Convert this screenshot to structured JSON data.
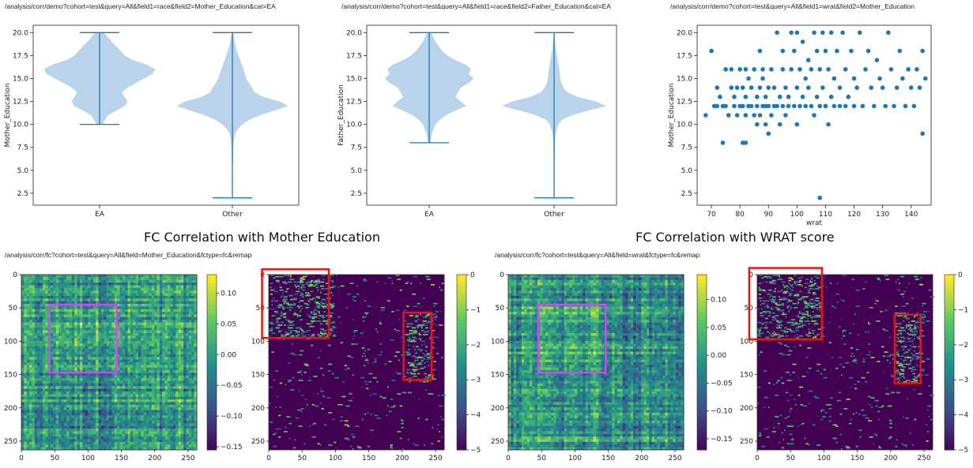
{
  "urls": {
    "violin_mother": "/analysis/corr/demo?cohort=test&query=All&field1=race&field2=Mother_Education&cat=EA",
    "violin_father": "/analysis/corr/demo?cohort=test&query=All&field1=race&field2=Father_Education&cat=EA",
    "scatter_wrat": "/analysis/corr/demo?cohort=test&query=All&field1=wrat&field2=Mother_Education",
    "fc_mother": "/analysis/corr/fc?cohort=test&query=All&field=Mother_Education&fctype=fc&remap",
    "fc_wrat": "/analysis/corr/fc?cohort=test&query=All&field=wrat&fctype=fc&remap"
  },
  "titles": {
    "fc_mother": "FC Correlation with Mother Education",
    "fc_wrat": "FC Correlation with WRAT score"
  },
  "colors": {
    "violin_fill": "#b9d4ea",
    "violin_line": "#1f77b4",
    "scatter_point": "#1f77b4",
    "highlight_magenta": "#e040fb",
    "highlight_red": "#ee1111"
  },
  "chart_data": [
    {
      "type": "violin",
      "categories": [
        "EA",
        "Other"
      ],
      "xlabel": "",
      "ylabel": "Mother_Education",
      "ylim": [
        1.2,
        20.8
      ],
      "yticks": [
        "2.5",
        "5.0",
        "7.5",
        "10.0",
        "12.5",
        "15.0",
        "17.5",
        "20.0"
      ],
      "series": [
        {
          "category": "EA",
          "min": 10,
          "max": 20,
          "density": [
            [
              10,
              0.05
            ],
            [
              10.5,
              0.1
            ],
            [
              11,
              0.15
            ],
            [
              11.5,
              0.3
            ],
            [
              12,
              0.45
            ],
            [
              12.5,
              0.5
            ],
            [
              13,
              0.45
            ],
            [
              13.5,
              0.4
            ],
            [
              14,
              0.5
            ],
            [
              14.5,
              0.65
            ],
            [
              15,
              0.8
            ],
            [
              15.5,
              0.95
            ],
            [
              16,
              1.0
            ],
            [
              16.5,
              0.85
            ],
            [
              17,
              0.6
            ],
            [
              17.5,
              0.45
            ],
            [
              18,
              0.38
            ],
            [
              18.5,
              0.3
            ],
            [
              19,
              0.22
            ],
            [
              19.5,
              0.15
            ],
            [
              20,
              0.08
            ]
          ]
        },
        {
          "category": "Other",
          "min": 2,
          "max": 20,
          "density": [
            [
              2,
              0.0
            ],
            [
              4,
              0.005
            ],
            [
              6,
              0.01
            ],
            [
              8,
              0.02
            ],
            [
              9,
              0.05
            ],
            [
              9.5,
              0.1
            ],
            [
              10,
              0.18
            ],
            [
              10.5,
              0.3
            ],
            [
              11,
              0.5
            ],
            [
              11.5,
              0.75
            ],
            [
              12,
              1.0
            ],
            [
              12.5,
              0.85
            ],
            [
              13,
              0.55
            ],
            [
              13.5,
              0.4
            ],
            [
              14,
              0.35
            ],
            [
              14.5,
              0.3
            ],
            [
              15,
              0.25
            ],
            [
              16,
              0.2
            ],
            [
              17,
              0.14
            ],
            [
              18,
              0.08
            ],
            [
              19,
              0.04
            ],
            [
              20,
              0.01
            ]
          ]
        }
      ]
    },
    {
      "type": "violin",
      "categories": [
        "EA",
        "Other"
      ],
      "xlabel": "",
      "ylabel": "Father_Education",
      "ylim": [
        1.2,
        20.8
      ],
      "yticks": [
        "2.5",
        "5.0",
        "7.5",
        "10.0",
        "12.5",
        "15.0",
        "17.5",
        "20.0"
      ],
      "series": [
        {
          "category": "EA",
          "min": 8,
          "max": 20,
          "density": [
            [
              8,
              0.02
            ],
            [
              9,
              0.05
            ],
            [
              10,
              0.12
            ],
            [
              10.5,
              0.2
            ],
            [
              11,
              0.32
            ],
            [
              11.5,
              0.5
            ],
            [
              12,
              0.7
            ],
            [
              12.5,
              0.6
            ],
            [
              13,
              0.5
            ],
            [
              13.5,
              0.55
            ],
            [
              14,
              0.6
            ],
            [
              14.5,
              0.75
            ],
            [
              15,
              0.85
            ],
            [
              15.5,
              0.75
            ],
            [
              16,
              0.8
            ],
            [
              16.5,
              0.7
            ],
            [
              17,
              0.5
            ],
            [
              17.5,
              0.35
            ],
            [
              18,
              0.25
            ],
            [
              19,
              0.12
            ],
            [
              20,
              0.04
            ]
          ]
        },
        {
          "category": "Other",
          "min": 2,
          "max": 20,
          "density": [
            [
              2,
              0.0
            ],
            [
              5,
              0.005
            ],
            [
              8,
              0.015
            ],
            [
              9,
              0.03
            ],
            [
              10,
              0.08
            ],
            [
              10.5,
              0.15
            ],
            [
              11,
              0.35
            ],
            [
              11.5,
              0.65
            ],
            [
              12,
              1.0
            ],
            [
              12.5,
              0.8
            ],
            [
              13,
              0.45
            ],
            [
              13.5,
              0.25
            ],
            [
              14,
              0.18
            ],
            [
              14.5,
              0.14
            ],
            [
              15,
              0.12
            ],
            [
              16,
              0.1
            ],
            [
              17,
              0.07
            ],
            [
              18,
              0.04
            ],
            [
              19,
              0.02
            ],
            [
              20,
              0.005
            ]
          ]
        }
      ]
    },
    {
      "type": "scatter",
      "xlabel": "wrat",
      "ylabel": "Mother_Education",
      "xlim": [
        65,
        147
      ],
      "ylim": [
        1.2,
        20.8
      ],
      "xticks": [
        "70",
        "80",
        "90",
        "100",
        "110",
        "120",
        "130",
        "140"
      ],
      "yticks": [
        "2.5",
        "5.0",
        "7.5",
        "10.0",
        "12.5",
        "15.0",
        "17.5",
        "20.0"
      ],
      "points": [
        [
          68,
          11
        ],
        [
          70,
          18
        ],
        [
          71,
          12
        ],
        [
          72,
          14
        ],
        [
          72,
          12
        ],
        [
          73,
          13
        ],
        [
          74,
          8
        ],
        [
          74,
          12
        ],
        [
          75,
          16
        ],
        [
          75,
          12
        ],
        [
          76,
          11
        ],
        [
          77,
          14
        ],
        [
          77,
          16
        ],
        [
          78,
          12
        ],
        [
          78,
          13
        ],
        [
          79,
          11
        ],
        [
          79,
          14
        ],
        [
          80,
          12
        ],
        [
          80,
          16
        ],
        [
          81,
          8
        ],
        [
          81,
          12
        ],
        [
          81,
          14
        ],
        [
          82,
          8
        ],
        [
          82,
          11
        ],
        [
          82,
          13
        ],
        [
          82,
          16
        ],
        [
          83,
          12
        ],
        [
          83,
          15
        ],
        [
          84,
          12
        ],
        [
          84,
          14
        ],
        [
          85,
          11
        ],
        [
          85,
          16
        ],
        [
          86,
          10
        ],
        [
          86,
          12
        ],
        [
          86,
          13
        ],
        [
          87,
          11
        ],
        [
          87,
          14
        ],
        [
          87,
          18
        ],
        [
          88,
          12
        ],
        [
          88,
          15
        ],
        [
          88,
          16
        ],
        [
          89,
          10
        ],
        [
          89,
          12
        ],
        [
          89,
          13
        ],
        [
          90,
          9
        ],
        [
          90,
          12
        ],
        [
          90,
          14
        ],
        [
          91,
          11
        ],
        [
          91,
          16
        ],
        [
          92,
          12
        ],
        [
          92,
          14
        ],
        [
          93,
          20
        ],
        [
          93,
          12
        ],
        [
          94,
          10
        ],
        [
          94,
          13
        ],
        [
          95,
          12
        ],
        [
          95,
          16
        ],
        [
          95,
          18
        ],
        [
          96,
          11
        ],
        [
          96,
          14
        ],
        [
          97,
          12
        ],
        [
          97,
          13
        ],
        [
          98,
          20
        ],
        [
          98,
          16
        ],
        [
          99,
          12
        ],
        [
          99,
          18
        ],
        [
          100,
          10
        ],
        [
          100,
          14
        ],
        [
          100,
          20
        ],
        [
          101,
          12
        ],
        [
          101,
          16
        ],
        [
          102,
          19
        ],
        [
          102,
          13
        ],
        [
          103,
          12
        ],
        [
          103,
          15
        ],
        [
          104,
          17
        ],
        [
          104,
          14
        ],
        [
          105,
          12
        ],
        [
          105,
          16
        ],
        [
          106,
          20
        ],
        [
          106,
          11
        ],
        [
          107,
          18
        ],
        [
          107,
          13
        ],
        [
          108,
          2
        ],
        [
          108,
          12
        ],
        [
          108,
          16
        ],
        [
          109,
          20
        ],
        [
          109,
          14
        ],
        [
          110,
          12
        ],
        [
          110,
          18
        ],
        [
          111,
          16
        ],
        [
          111,
          10
        ],
        [
          112,
          20
        ],
        [
          112,
          13
        ],
        [
          113,
          12
        ],
        [
          113,
          15
        ],
        [
          114,
          18
        ],
        [
          115,
          12
        ],
        [
          115,
          14
        ],
        [
          116,
          20
        ],
        [
          117,
          12
        ],
        [
          117,
          16
        ],
        [
          118,
          13
        ],
        [
          119,
          18
        ],
        [
          120,
          12
        ],
        [
          120,
          15
        ],
        [
          121,
          14
        ],
        [
          122,
          20
        ],
        [
          123,
          12
        ],
        [
          124,
          16
        ],
        [
          125,
          18
        ],
        [
          126,
          14
        ],
        [
          127,
          12
        ],
        [
          128,
          17
        ],
        [
          129,
          15
        ],
        [
          130,
          14
        ],
        [
          131,
          12
        ],
        [
          132,
          20
        ],
        [
          133,
          16
        ],
        [
          134,
          12
        ],
        [
          135,
          14
        ],
        [
          136,
          18
        ],
        [
          137,
          15
        ],
        [
          138,
          12
        ],
        [
          139,
          16
        ],
        [
          140,
          14
        ],
        [
          141,
          12
        ],
        [
          142,
          16
        ],
        [
          143,
          14
        ],
        [
          144,
          18
        ],
        [
          144,
          9
        ],
        [
          145,
          15
        ]
      ]
    },
    {
      "type": "heatmap",
      "name": "mother_fc",
      "xlim": [
        0,
        263
      ],
      "ylim": [
        263,
        0
      ],
      "xticks": [
        "0",
        "50",
        "100",
        "150",
        "200",
        "250"
      ],
      "yticks": [
        "0",
        "50",
        "100",
        "150",
        "200",
        "250"
      ],
      "colorbar": {
        "min": -0.155,
        "max": 0.13,
        "ticks": [
          "0.10",
          "0.05",
          "0.00",
          "−0.05",
          "−0.10",
          "−0.15"
        ]
      },
      "highlight_box": {
        "x": [
          42,
          143
        ],
        "y": [
          45,
          147
        ],
        "color": "magenta"
      }
    },
    {
      "type": "heatmap",
      "name": "mother_p",
      "xlim": [
        0,
        263
      ],
      "ylim": [
        263,
        0
      ],
      "xticks": [
        "0",
        "50",
        "100",
        "150",
        "200",
        "250"
      ],
      "yticks": [
        "0",
        "50",
        "100",
        "150",
        "200",
        "250"
      ],
      "colorbar": {
        "min": -5,
        "max": 0,
        "ticks": [
          "0",
          "−1",
          "−2",
          "−3",
          "−4",
          "−5"
        ]
      },
      "highlight_boxes": [
        {
          "x": [
            -10,
            90
          ],
          "y": [
            -8,
            95
          ],
          "color": "red"
        },
        {
          "x": [
            202,
            244
          ],
          "y": [
            57,
            158
          ],
          "color": "red"
        }
      ]
    },
    {
      "type": "heatmap",
      "name": "wrat_fc",
      "xlim": [
        0,
        263
      ],
      "ylim": [
        263,
        0
      ],
      "xticks": [
        "0",
        "50",
        "100",
        "150",
        "200",
        "250"
      ],
      "yticks": [
        "0",
        "50",
        "100",
        "150",
        "200",
        "250"
      ],
      "colorbar": {
        "min": -0.17,
        "max": 0.145,
        "ticks": [
          "0.10",
          "0.05",
          "0.00",
          "−0.05",
          "−0.10",
          "−0.15"
        ]
      },
      "highlight_box": {
        "x": [
          45,
          146
        ],
        "y": [
          45,
          147
        ],
        "color": "magenta"
      }
    },
    {
      "type": "heatmap",
      "name": "wrat_p",
      "xlim": [
        0,
        263
      ],
      "ylim": [
        263,
        0
      ],
      "xticks": [
        "0",
        "50",
        "100",
        "150",
        "200",
        "250"
      ],
      "yticks": [
        "0",
        "50",
        "100",
        "150",
        "200",
        "250"
      ],
      "colorbar": {
        "min": -5,
        "max": 0,
        "ticks": [
          "0",
          "−1",
          "−2",
          "−3",
          "−4",
          "−5"
        ]
      },
      "highlight_boxes": [
        {
          "x": [
            -12,
            97
          ],
          "y": [
            -10,
            97
          ],
          "color": "red"
        },
        {
          "x": [
            206,
            245
          ],
          "y": [
            60,
            163
          ],
          "color": "red"
        }
      ]
    }
  ]
}
